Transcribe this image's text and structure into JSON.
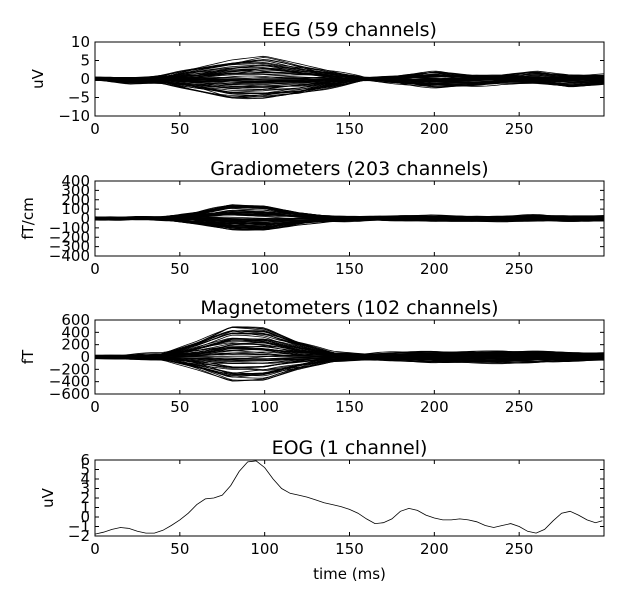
{
  "chart_data": [
    {
      "type": "line",
      "title": "EEG (59 channels)",
      "ylabel": "uV",
      "xlabel": "",
      "xlim": [
        0,
        300
      ],
      "ylim": [
        -10,
        10
      ],
      "xticks": [
        0,
        50,
        100,
        150,
        200,
        250
      ],
      "yticks": [
        -10,
        -5,
        0,
        5,
        10
      ],
      "channels": 59,
      "legend": "none",
      "series": [
        {
          "name": "",
          "x": [
            0,
            20,
            40,
            60,
            80,
            100,
            120,
            140,
            160,
            180,
            200,
            220,
            240,
            260,
            280,
            300
          ],
          "values": [
            0,
            0,
            1,
            3,
            5,
            6,
            4,
            2,
            0,
            1,
            2,
            1,
            1,
            2,
            1,
            1
          ]
        },
        {
          "name": "",
          "x": [
            0,
            20,
            40,
            60,
            80,
            100,
            120,
            140,
            160,
            180,
            200,
            220,
            240,
            260,
            280,
            300
          ],
          "values": [
            0,
            -1,
            -1,
            -3,
            -5,
            -5,
            -4,
            -2,
            0,
            -1,
            -2,
            -2,
            -1,
            -1,
            -2,
            -1
          ]
        }
      ]
    },
    {
      "type": "line",
      "title": "Gradiometers (203 channels)",
      "ylabel": "fT/cm",
      "xlabel": "",
      "xlim": [
        0,
        300
      ],
      "ylim": [
        -400,
        400
      ],
      "xticks": [
        0,
        50,
        100,
        150,
        200,
        250
      ],
      "yticks": [
        -400,
        -300,
        -200,
        -100,
        0,
        100,
        200,
        300,
        400
      ],
      "channels": 203,
      "legend": "none",
      "series": [
        {
          "name": "",
          "x": [
            0,
            20,
            40,
            60,
            80,
            100,
            120,
            140,
            160,
            180,
            200,
            220,
            240,
            260,
            280,
            300
          ],
          "values": [
            0,
            0,
            10,
            60,
            150,
            140,
            60,
            20,
            10,
            20,
            30,
            20,
            20,
            30,
            20,
            20
          ]
        },
        {
          "name": "",
          "x": [
            0,
            20,
            40,
            60,
            80,
            100,
            120,
            140,
            160,
            180,
            200,
            220,
            240,
            260,
            280,
            300
          ],
          "values": [
            0,
            -5,
            -10,
            -50,
            -100,
            -120,
            -60,
            -20,
            -10,
            -10,
            -20,
            -20,
            -20,
            -10,
            -20,
            -20
          ]
        }
      ]
    },
    {
      "type": "line",
      "title": "Magnetometers (102 channels)",
      "ylabel": "fT",
      "xlabel": "",
      "xlim": [
        0,
        300
      ],
      "ylim": [
        -600,
        600
      ],
      "xticks": [
        0,
        50,
        100,
        150,
        200,
        250
      ],
      "yticks": [
        -600,
        -400,
        -200,
        0,
        200,
        400,
        600
      ],
      "channels": 102,
      "legend": "none",
      "series": [
        {
          "name": "",
          "x": [
            0,
            20,
            40,
            60,
            80,
            100,
            120,
            140,
            160,
            180,
            200,
            220,
            240,
            260,
            280,
            300
          ],
          "values": [
            0,
            20,
            50,
            250,
            500,
            480,
            250,
            80,
            40,
            60,
            80,
            80,
            100,
            90,
            60,
            50
          ]
        },
        {
          "name": "",
          "x": [
            0,
            20,
            40,
            60,
            80,
            100,
            120,
            140,
            160,
            180,
            200,
            220,
            240,
            260,
            280,
            300
          ],
          "values": [
            0,
            -20,
            -40,
            -200,
            -380,
            -380,
            -200,
            -60,
            -40,
            -60,
            -80,
            -80,
            -90,
            -80,
            -60,
            -50
          ]
        }
      ]
    },
    {
      "type": "line",
      "title": "EOG (1 channel)",
      "ylabel": "uV",
      "xlabel": "time (ms)",
      "xlim": [
        0,
        300
      ],
      "ylim": [
        -2,
        6
      ],
      "xticks": [
        0,
        50,
        100,
        150,
        200,
        250
      ],
      "yticks": [
        -2,
        -1,
        0,
        1,
        2,
        3,
        4,
        5,
        6
      ],
      "channels": 1,
      "legend": "none",
      "series": [
        {
          "name": "",
          "x": [
            0,
            5,
            10,
            15,
            20,
            25,
            30,
            35,
            40,
            45,
            50,
            55,
            60,
            65,
            70,
            75,
            80,
            85,
            90,
            95,
            100,
            105,
            110,
            115,
            120,
            125,
            130,
            135,
            140,
            145,
            150,
            155,
            160,
            165,
            170,
            175,
            180,
            185,
            190,
            195,
            200,
            205,
            210,
            215,
            220,
            225,
            230,
            235,
            240,
            245,
            250,
            255,
            260,
            265,
            270,
            275,
            280,
            285,
            290,
            295,
            299
          ],
          "values": [
            -1.8,
            -1.6,
            -1.3,
            -1.1,
            -1.2,
            -1.5,
            -1.7,
            -1.7,
            -1.4,
            -0.9,
            -0.3,
            0.4,
            1.3,
            1.9,
            2.0,
            2.3,
            3.3,
            4.8,
            5.8,
            5.9,
            5.2,
            4.0,
            3.0,
            2.5,
            2.3,
            2.1,
            1.8,
            1.5,
            1.3,
            1.1,
            0.8,
            0.4,
            -0.2,
            -0.7,
            -0.6,
            -0.2,
            0.6,
            0.9,
            0.7,
            0.2,
            -0.1,
            -0.3,
            -0.3,
            -0.2,
            -0.3,
            -0.5,
            -0.9,
            -1.1,
            -0.9,
            -0.7,
            -1.0,
            -1.5,
            -1.7,
            -1.3,
            -0.4,
            0.4,
            0.6,
            0.2,
            -0.3,
            -0.6,
            -0.4
          ]
        }
      ]
    }
  ]
}
